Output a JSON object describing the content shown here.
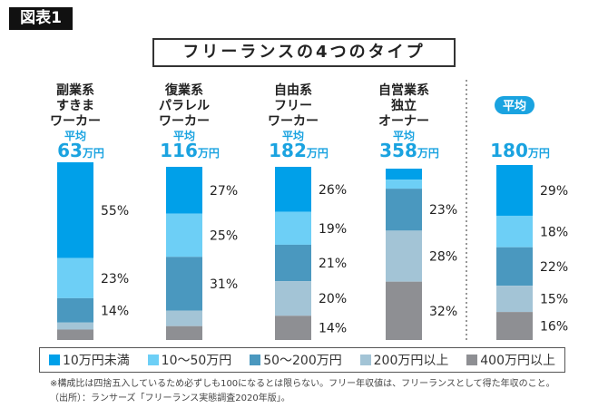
{
  "badge": "図表1",
  "chart_data": {
    "type": "bar",
    "stacked": true,
    "title": "フリーランスの4つのタイプ",
    "avg_label": "平均",
    "unit": "万円",
    "categories": [
      {
        "label": [
          "副業系",
          "すきま",
          "ワーカー"
        ],
        "average": "63"
      },
      {
        "label": [
          "復業系",
          "パラレル",
          "ワーカー"
        ],
        "average": "116"
      },
      {
        "label": [
          "自由系",
          "フリー",
          "ワーカー"
        ],
        "average": "182"
      },
      {
        "label": [
          "自営業系",
          "独立",
          "オーナー"
        ],
        "average": "358"
      },
      {
        "label": [],
        "average": "180",
        "is_overall": true
      }
    ],
    "series": [
      {
        "name": "10万円未満",
        "color": "#00a0e9",
        "values": [
          55,
          27,
          26,
          6,
          29
        ],
        "labeled": [
          true,
          true,
          true,
          false,
          true
        ]
      },
      {
        "name": "10～50万円",
        "color": "#6dcff6",
        "values": [
          23,
          25,
          19,
          5,
          18
        ],
        "labeled": [
          true,
          true,
          true,
          false,
          true
        ]
      },
      {
        "name": "50～200万円",
        "color": "#4a98bf",
        "values": [
          14,
          31,
          21,
          23,
          22
        ],
        "labeled": [
          true,
          true,
          true,
          true,
          true
        ]
      },
      {
        "name": "200万円以上",
        "color": "#a3c4d6",
        "values": [
          4,
          9,
          20,
          28,
          15
        ],
        "labeled": [
          false,
          false,
          true,
          true,
          true
        ]
      },
      {
        "name": "400万円以上",
        "color": "#8e8f93",
        "values": [
          6,
          8,
          14,
          32,
          16
        ],
        "labeled": [
          false,
          false,
          true,
          true,
          true
        ]
      }
    ],
    "value_suffix": "%",
    "ylim": [
      0,
      100
    ],
    "legend_position": "bottom"
  },
  "notes": [
    "※構成比は四捨五入しているため必ずしも100になるとは限らない。フリー年収値は、フリーランスとして得た年収のこと。",
    "（出所）：ランサーズ「フリーランス実態調査2020年版」。"
  ],
  "colors": {
    "accent": "#1aa3e0",
    "text": "#222222"
  }
}
